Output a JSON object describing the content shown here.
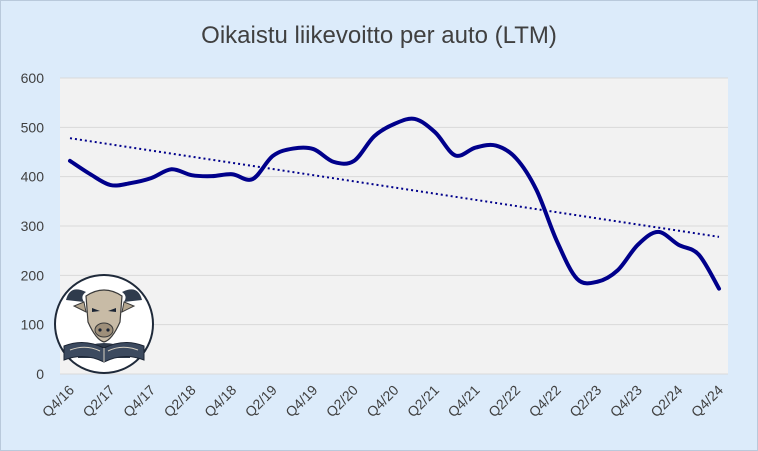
{
  "chart_data": {
    "type": "line",
    "title": "Oikaistu liikevoitto per auto (LTM)",
    "xlabel": "",
    "ylabel": "",
    "ylim": [
      0,
      600
    ],
    "yticks": [
      "0",
      "100",
      "200",
      "300",
      "400",
      "500",
      "600"
    ],
    "x": [
      "Q4/16",
      "Q1/17",
      "Q2/17",
      "Q3/17",
      "Q4/17",
      "Q1/18",
      "Q2/18",
      "Q3/18",
      "Q4/18",
      "Q1/19",
      "Q2/19",
      "Q3/19",
      "Q4/19",
      "Q1/20",
      "Q2/20",
      "Q3/20",
      "Q4/20",
      "Q1/21",
      "Q2/21",
      "Q3/21",
      "Q4/21",
      "Q1/22",
      "Q2/22",
      "Q3/22",
      "Q4/22",
      "Q1/23",
      "Q2/23",
      "Q3/23",
      "Q4/23",
      "Q1/24",
      "Q2/24",
      "Q3/24",
      "Q4/24"
    ],
    "xtick_labels": [
      "Q4/16",
      "Q2/17",
      "Q4/17",
      "Q2/18",
      "Q4/18",
      "Q2/19",
      "Q4/19",
      "Q2/20",
      "Q4/20",
      "Q2/21",
      "Q4/21",
      "Q2/22",
      "Q4/22",
      "Q2/23",
      "Q4/23",
      "Q2/24",
      "Q4/24"
    ],
    "series": [
      {
        "values": [
          432,
          405,
          383,
          387,
          397,
          415,
          403,
          401,
          405,
          395,
          442,
          457,
          456,
          430,
          432,
          482,
          507,
          517,
          490,
          443,
          459,
          463,
          437,
          373,
          270,
          193,
          187,
          210,
          262,
          288,
          262,
          242,
          173
        ],
        "color": "#00008b"
      }
    ],
    "trendline": {
      "style": "dotted",
      "start": 478,
      "end": 278,
      "color": "#00008b"
    },
    "grid": true,
    "plot_background": "#f2f2f2",
    "chart_background": "#dcebfa",
    "gridline_color": "#d9d9d9"
  },
  "logo": {
    "name": "bull-reading-book-logo"
  }
}
